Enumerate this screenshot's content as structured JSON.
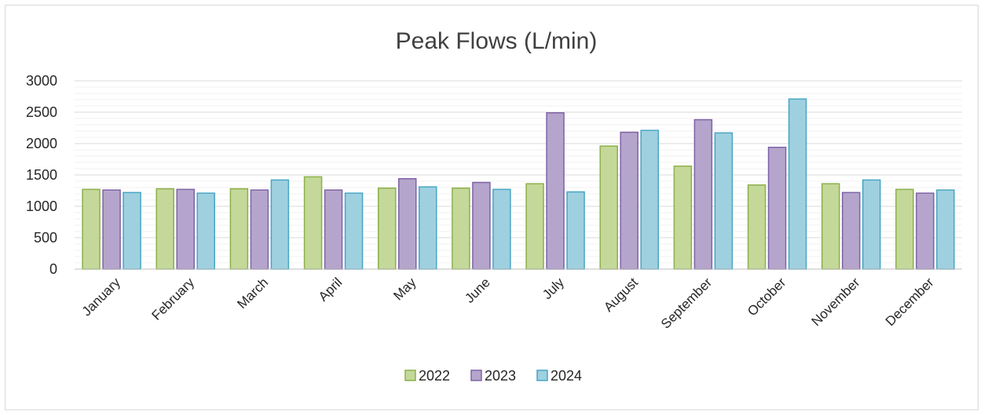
{
  "chart_data": {
    "type": "bar",
    "title": "Peak Flows (L/min)",
    "xlabel": "",
    "ylabel": "",
    "ylim": [
      0,
      3000
    ],
    "yticks": [
      "0",
      "500",
      "1000",
      "1500",
      "2000",
      "2500",
      "3000"
    ],
    "categories": [
      "January",
      "February",
      "March",
      "April",
      "May",
      "June",
      "July",
      "August",
      "September",
      "October",
      "November",
      "December"
    ],
    "series": [
      {
        "name": "2022",
        "color": "#c4d89a",
        "stroke": "#8db04a",
        "values": [
          1270,
          1280,
          1280,
          1470,
          1290,
          1290,
          1360,
          1960,
          1640,
          1340,
          1360,
          1270
        ]
      },
      {
        "name": "2023",
        "color": "#b5a5cc",
        "stroke": "#7f63a8",
        "values": [
          1260,
          1270,
          1260,
          1260,
          1440,
          1380,
          2490,
          2180,
          2380,
          1940,
          1220,
          1210
        ]
      },
      {
        "name": "2024",
        "color": "#9fd0df",
        "stroke": "#47a6c4",
        "values": [
          1220,
          1210,
          1420,
          1210,
          1310,
          1270,
          1230,
          2210,
          2170,
          2710,
          1420,
          1260
        ]
      }
    ],
    "grid": true,
    "minor_grid": true,
    "legend_position": "bottom"
  }
}
